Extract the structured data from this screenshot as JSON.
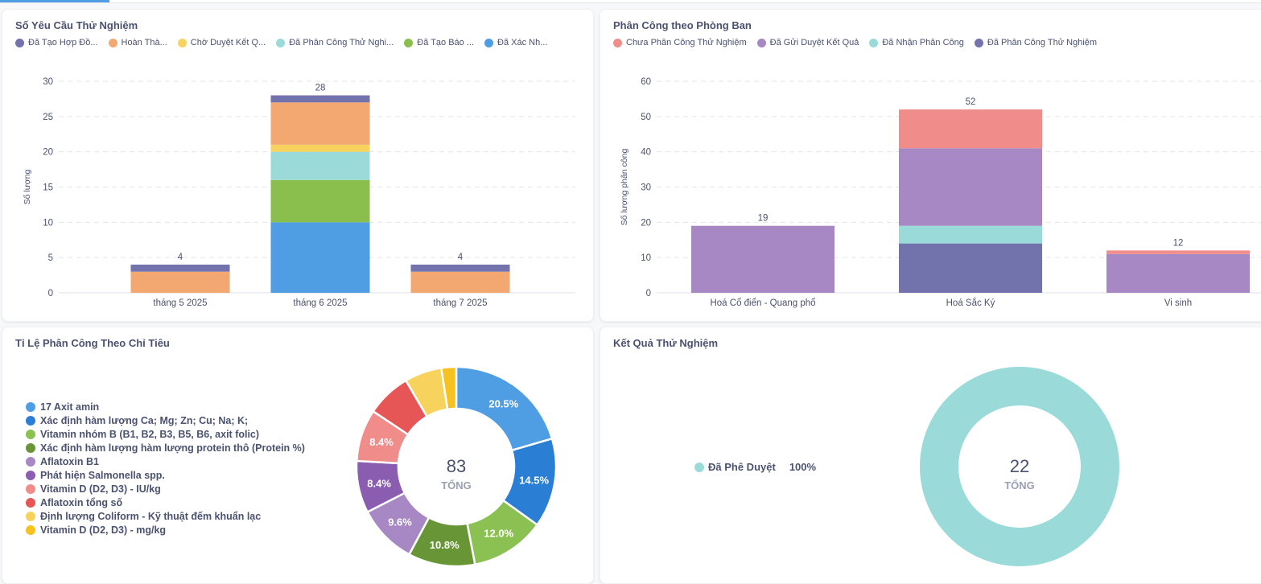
{
  "tabs": {
    "active_index": 0
  },
  "colors": {
    "accent": "#4f9de3",
    "grid": "#e3e5ea",
    "axis_text": "#4a5270"
  },
  "panels": {
    "requests": {
      "title": "Số Yêu Cầu Thử Nghiệm"
    },
    "departments": {
      "title": "Phân Công theo Phòng Ban"
    },
    "indicators": {
      "title": "Tỉ Lệ Phân Công Theo Chỉ Tiêu"
    },
    "results": {
      "title": "Kết Quả Thử Nghiệm"
    }
  },
  "chart_data": [
    {
      "id": "requests",
      "type": "bar",
      "stacked": true,
      "title": "Số Yêu Cầu Thử Nghiệm",
      "xlabel": "",
      "ylabel": "Số lượng",
      "ylim": [
        0,
        30
      ],
      "yticks": [
        0,
        5,
        10,
        15,
        20,
        25,
        30
      ],
      "grid": true,
      "legend_position": "top-left",
      "categories": [
        "tháng 5 2025",
        "tháng 6 2025",
        "tháng 7 2025"
      ],
      "totals": [
        4,
        28,
        4
      ],
      "series": [
        {
          "name": "Đã Xác Nh...",
          "color": "#4f9de3",
          "values": [
            0,
            10,
            0
          ]
        },
        {
          "name": "Đã Tạo Báo ...",
          "color": "#8bbf4d",
          "values": [
            0,
            6,
            0
          ]
        },
        {
          "name": "Đã Phân Công Thử Nghi...",
          "color": "#9adbd9",
          "values": [
            0,
            4,
            0
          ]
        },
        {
          "name": "Chờ Duyệt Kết Q...",
          "color": "#f7d35e",
          "values": [
            0,
            1,
            0
          ]
        },
        {
          "name": "Hoàn Thà...",
          "color": "#f3a872",
          "values": [
            3,
            6,
            3
          ]
        },
        {
          "name": "Đã Tạo Hợp Đồ...",
          "color": "#7272ad",
          "values": [
            1,
            1,
            1
          ]
        }
      ],
      "legend_order": [
        "Đã Tạo Hợp Đồ...",
        "Hoàn Thà...",
        "Chờ Duyệt Kết Q...",
        "Đã Phân Công Thử Nghi...",
        "Đã Tạo Báo ...",
        "Đã Xác Nh..."
      ]
    },
    {
      "id": "departments",
      "type": "bar",
      "stacked": true,
      "title": "Phân Công theo Phòng Ban",
      "xlabel": "",
      "ylabel": "Số lượng phân công",
      "ylim": [
        0,
        60
      ],
      "yticks": [
        0,
        10,
        20,
        30,
        40,
        50,
        60
      ],
      "grid": true,
      "legend_position": "top-left",
      "categories": [
        "Hoá Cổ điển - Quang phổ",
        "Hoá Sắc Ký",
        "Vi sinh"
      ],
      "totals": [
        19,
        52,
        12
      ],
      "series": [
        {
          "name": "Đã Phân Công Thử Nghiệm",
          "color": "#7272ad",
          "values": [
            0,
            14,
            0
          ]
        },
        {
          "name": "Đã Nhận Phân Công",
          "color": "#9adbd9",
          "values": [
            0,
            5,
            0
          ]
        },
        {
          "name": "Đã Gửi Duyệt Kết Quả",
          "color": "#a888c4",
          "values": [
            19,
            22,
            11
          ]
        },
        {
          "name": "Chưa Phân Công Thử Nghiệm",
          "color": "#f08c8a",
          "values": [
            0,
            11,
            1
          ]
        }
      ],
      "legend_order": [
        "Chưa Phân Công Thử Nghiệm",
        "Đã Gửi Duyệt Kết Quả",
        "Đã Nhận Phân Công",
        "Đã Phân Công Thử Nghiệm"
      ]
    },
    {
      "id": "indicators",
      "type": "pie",
      "donut": true,
      "title": "Tỉ Lệ Phân Công Theo Chỉ Tiêu",
      "legend_position": "left",
      "center_value": "83",
      "center_label": "TỔNG",
      "slices": [
        {
          "label": "17 Axit amin",
          "value": 17,
          "pct_label": "20.5%",
          "color": "#4f9de3"
        },
        {
          "label": "Xác định hàm lượng Ca; Mg; Zn; Cu; Na; K;",
          "value": 12,
          "pct_label": "14.5%",
          "color": "#2a7fd4"
        },
        {
          "label": "Vitamin nhóm B (B1, B2, B3, B5, B6, axit folic)",
          "value": 10,
          "pct_label": "12.0%",
          "color": "#8bc152"
        },
        {
          "label": "Xác định hàm lượng hàm lượng protein thô (Protein %)",
          "value": 9,
          "pct_label": "10.8%",
          "color": "#689636"
        },
        {
          "label": "Aflatoxin B1",
          "value": 8,
          "pct_label": "9.6%",
          "color": "#a888c4"
        },
        {
          "label": "Phát hiện Salmonella spp.",
          "value": 7,
          "pct_label": "8.4%",
          "color": "#8a5db0"
        },
        {
          "label": "Vitamin D (D2, D3) - IU/kg",
          "value": 7,
          "pct_label": "8.4%",
          "color": "#f08c8a"
        },
        {
          "label": "Aflatoxin tổng số",
          "value": 6,
          "pct_label": "",
          "color": "#e65656"
        },
        {
          "label": "Định lượng Coliform - Kỹ thuật đếm khuẩn lạc",
          "value": 5,
          "pct_label": "",
          "color": "#f7d35e"
        },
        {
          "label": "Vitamin D (D2, D3) - mg/kg",
          "value": 2,
          "pct_label": "",
          "color": "#f5c220"
        }
      ]
    },
    {
      "id": "results",
      "type": "pie",
      "donut": true,
      "title": "Kết Quả Thử Nghiệm",
      "legend_position": "left",
      "center_value": "22",
      "center_label": "TỔNG",
      "slices": [
        {
          "label": "Đã Phê Duyệt",
          "value": 22,
          "pct_label": "100%",
          "color": "#9adbd9"
        }
      ]
    }
  ]
}
